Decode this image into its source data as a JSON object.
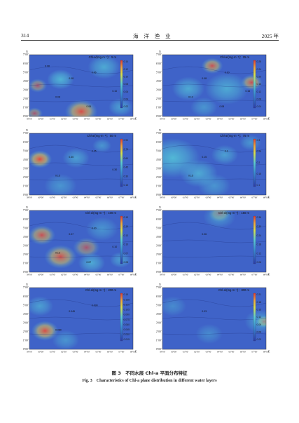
{
  "header": {
    "page_number": "314",
    "journal": "海 洋 渔 业",
    "year": "2025 年"
  },
  "caption": {
    "cn": "图 3　不同水层 Chl-a 平面分布特征",
    "en": "Fig. 3　Characteristics of Chl-a plane distribution in different water layers"
  },
  "colors": {
    "low": "#2c3fb0",
    "mid": "#55c7d8",
    "high": "#e8483a",
    "text": "#222222"
  },
  "chart_data": [
    {
      "type": "heatmap",
      "title": "Chl-a/(mg·m⁻³)：5 m",
      "xticks": [
        "59°00′",
        "60°00′",
        "61°00′",
        "62°00′",
        "63°00′",
        "64°00′",
        "65°00′",
        "66°00′",
        "67°00′",
        "68°00′"
      ],
      "yticks": [
        "0°00′",
        "1°00′",
        "2°00′",
        "3°00′",
        "4°00′",
        "5°00′",
        "6°00′",
        "7°00′"
      ],
      "x_unit": "E",
      "y_unit": "N",
      "colorbar": [
        "0.14",
        "0.12",
        "0.10",
        "0.08",
        "0.06",
        "0.04",
        "0.02"
      ],
      "contour_labels": [
        "0.08",
        "0.06",
        "0.08",
        "0.10",
        "0.06",
        "0.08"
      ]
    },
    {
      "type": "heatmap",
      "title": "Chl-a/(mg·m⁻³)：25 m",
      "xticks": [
        "59°00′",
        "60°00′",
        "61°00′",
        "62°00′",
        "63°00′",
        "64°00′",
        "65°00′",
        "66°00′",
        "67°00′",
        "68°00′"
      ],
      "yticks": [
        "0°00′",
        "1°00′",
        "2°00′",
        "3°00′",
        "4°00′",
        "5°00′",
        "6°00′",
        "7°00′"
      ],
      "x_unit": "E",
      "y_unit": "N",
      "colorbar": [
        "0.28",
        "0.24",
        "0.20",
        "0.16",
        "0.12",
        "0.08",
        "0.04"
      ],
      "contour_labels": [
        "0.08",
        "0.10",
        "0.12",
        "0.16",
        "0.08"
      ]
    },
    {
      "type": "heatmap",
      "title": "Chl-a/(mg·m⁻³)：50 m",
      "xticks": [
        "59°00′",
        "60°00′",
        "61°00′",
        "62°00′",
        "63°00′",
        "64°00′",
        "65°00′",
        "66°00′",
        "67°00′",
        "68°00′"
      ],
      "yticks": [
        "0°00′",
        "1°00′",
        "2°00′",
        "3°00′",
        "4°00′",
        "5°00′",
        "6°00′",
        "7°00′"
      ],
      "x_unit": "E",
      "y_unit": "N",
      "colorbar": [
        "0.90",
        "0.75",
        "0.60",
        "0.45",
        "0.30",
        "0.15"
      ],
      "contour_labels": [
        "0.30",
        "0.15",
        "0.15",
        "0.30"
      ]
    },
    {
      "type": "heatmap",
      "title": "Chl-a/(mg·m⁻³)：75 m",
      "xticks": [
        "59°00′",
        "60°00′",
        "61°00′",
        "62°00′",
        "63°00′",
        "64°00′",
        "65°00′",
        "66°00′",
        "67°00′",
        "68°00′"
      ],
      "yticks": [
        "0°00′",
        "1°00′",
        "2°00′",
        "3°00′",
        "4°00′",
        "5°00′",
        "6°00′",
        "7°00′"
      ],
      "x_unit": "E",
      "y_unit": "N",
      "colorbar": [
        "0.3",
        "0.25",
        "0.2",
        "0.15",
        "0.1"
      ],
      "contour_labels": [
        "0.15",
        "0.1",
        "0.15"
      ]
    },
    {
      "type": "heatmap",
      "title": "Chl-a/(mg·m⁻³)：100 m",
      "xticks": [
        "59°00′",
        "60°00′",
        "61°00′",
        "62°00′",
        "63°00′",
        "64°00′",
        "65°00′",
        "66°00′",
        "67°00′",
        "68°00′"
      ],
      "yticks": [
        "0°00′",
        "1°00′",
        "2°00′",
        "3°00′",
        "4°00′",
        "5°00′",
        "6°00′",
        "7°00′"
      ],
      "x_unit": "E",
      "y_unit": "N",
      "colorbar": [
        "0.19",
        "0.16",
        "0.13",
        "0.10",
        "0.07",
        "0.05"
      ],
      "contour_labels": [
        "0.07",
        "0.10",
        "0.13",
        "0.10",
        "0.07"
      ]
    },
    {
      "type": "heatmap",
      "title": "Chl-a/(mg·m⁻³)：150 m",
      "xticks": [
        "59°00′",
        "60°00′",
        "61°00′",
        "62°00′",
        "63°00′",
        "64°00′",
        "65°00′",
        "66°00′",
        "67°00′",
        "68°00′"
      ],
      "yticks": [
        "0°00′",
        "1°00′",
        "2°00′",
        "3°00′",
        "4°00′",
        "5°00′",
        "6°00′",
        "7°00′"
      ],
      "x_unit": "E",
      "y_unit": "N",
      "colorbar": [
        "0.36",
        "0.30",
        "0.24",
        "0.18",
        "0.12",
        "0.06"
      ],
      "contour_labels": [
        "0.06"
      ]
    },
    {
      "type": "heatmap",
      "title": "Chl-a/(mg·m⁻³)：200 m",
      "xticks": [
        "59°00′",
        "60°00′",
        "61°00′",
        "62°00′",
        "63°00′",
        "64°00′",
        "65°00′",
        "66°00′",
        "67°00′",
        "68°00′"
      ],
      "yticks": [
        "0°00′",
        "1°00′",
        "2°00′",
        "3°00′",
        "4°00′",
        "5°00′",
        "6°00′",
        "7°00′"
      ],
      "x_unit": "E",
      "y_unit": "N",
      "colorbar": [
        "0.15",
        "0.135",
        "0.120",
        "0.105",
        "0.090",
        "0.075",
        "0.060",
        "0.045",
        "0.030",
        "0.015"
      ],
      "contour_labels": [
        "0.045",
        "0.030",
        "0.060"
      ]
    },
    {
      "type": "heatmap",
      "title": "Chl-a/(mg·m⁻³)：300 m",
      "xticks": [
        "59°00′",
        "60°00′",
        "61°00′",
        "62°00′",
        "63°00′",
        "64°00′",
        "65°00′",
        "66°00′",
        "67°00′",
        "68°00′"
      ],
      "yticks": [
        "0°00′",
        "1°00′",
        "2°00′",
        "3°00′",
        "4°00′",
        "5°00′",
        "6°00′",
        "7°00′"
      ],
      "x_unit": "E",
      "y_unit": "N",
      "colorbar": [
        "0.21",
        "0.18",
        "0.15",
        "0.12",
        "0.09",
        "0.06",
        "0.03"
      ],
      "contour_labels": [
        "0.03"
      ]
    }
  ]
}
